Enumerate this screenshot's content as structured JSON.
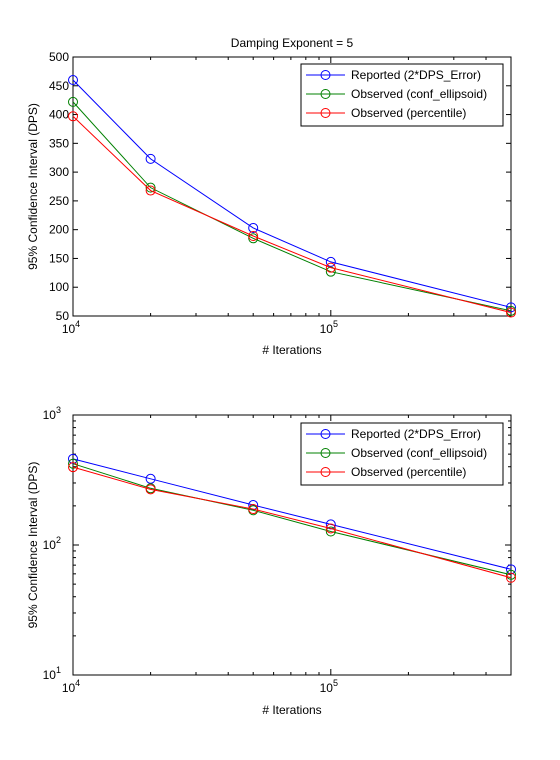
{
  "chart_data": [
    {
      "type": "line",
      "title": "Damping Exponent = 5",
      "xlabel": "# Iterations",
      "ylabel": "95% Confidence Interval (DPS)",
      "xscale": "log",
      "yscale": "linear",
      "xlim": [
        10000,
        500000
      ],
      "ylim": [
        50,
        500
      ],
      "yticks": [
        50,
        100,
        150,
        200,
        250,
        300,
        350,
        400,
        450,
        500
      ],
      "xtick_major": [
        {
          "value": 10000,
          "base": "10",
          "exp": "4"
        },
        {
          "value": 100000,
          "base": "10",
          "exp": "5"
        }
      ],
      "grid": false,
      "legend_position": "top-right",
      "x": [
        10000,
        20000,
        50000,
        100000,
        500000
      ],
      "series": [
        {
          "name": "Reported (2*DPS_Error)",
          "color": "#0000ff",
          "marker": "circle",
          "values": [
            460,
            323,
            203,
            144,
            65
          ]
        },
        {
          "name": "Observed (conf_ellipsoid)",
          "color": "#008000",
          "marker": "circle",
          "values": [
            422,
            273,
            185,
            127,
            59
          ]
        },
        {
          "name": "Observed (percentile)",
          "color": "#ff0000",
          "marker": "circle",
          "values": [
            397,
            268,
            189,
            134,
            56
          ]
        }
      ]
    },
    {
      "type": "line",
      "title": "",
      "xlabel": "# Iterations",
      "ylabel": "95% Confidence Interval (DPS)",
      "xscale": "log",
      "yscale": "log",
      "xlim": [
        10000,
        500000
      ],
      "ylim": [
        10,
        1000
      ],
      "xtick_major": [
        {
          "value": 10000,
          "base": "10",
          "exp": "4"
        },
        {
          "value": 100000,
          "base": "10",
          "exp": "5"
        }
      ],
      "ytick_major": [
        {
          "value": 10,
          "base": "10",
          "exp": "1"
        },
        {
          "value": 100,
          "base": "10",
          "exp": "2"
        },
        {
          "value": 1000,
          "base": "10",
          "exp": "3"
        }
      ],
      "grid": false,
      "legend_position": "top-right",
      "x": [
        10000,
        20000,
        50000,
        100000,
        500000
      ],
      "series": [
        {
          "name": "Reported (2*DPS_Error)",
          "color": "#0000ff",
          "marker": "circle",
          "values": [
            460,
            323,
            203,
            144,
            65
          ]
        },
        {
          "name": "Observed (conf_ellipsoid)",
          "color": "#008000",
          "marker": "circle",
          "values": [
            422,
            273,
            185,
            127,
            59
          ]
        },
        {
          "name": "Observed (percentile)",
          "color": "#ff0000",
          "marker": "circle",
          "values": [
            397,
            268,
            189,
            134,
            56
          ]
        }
      ]
    }
  ]
}
